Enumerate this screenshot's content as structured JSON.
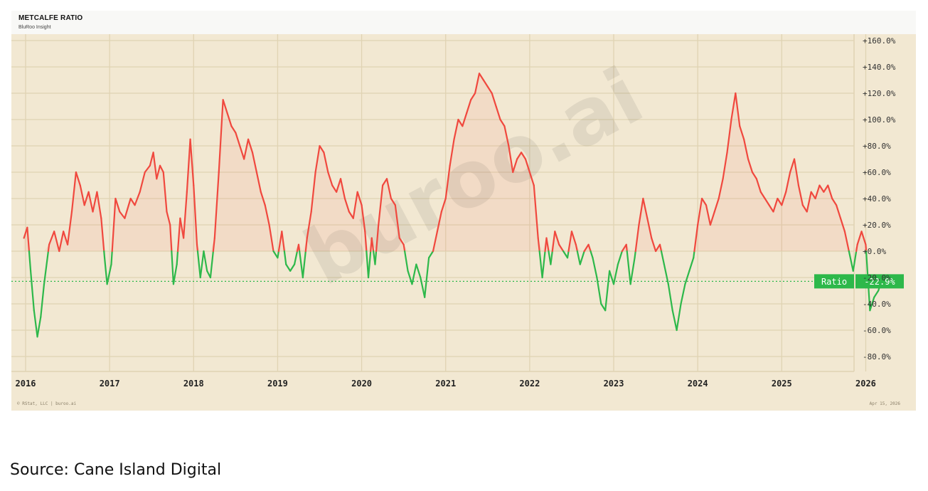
{
  "header": {
    "title": "METCALFE RATIO",
    "subtitle": "BluRoo Insight"
  },
  "watermark": "buroo.ai",
  "footer": {
    "left": "© RStat, LLC  |  buroo.ai",
    "right": "Apr 15, 2026"
  },
  "caption": "Source: Cane Island Digital",
  "badge": {
    "label": "Ratio",
    "value": "-22.9%"
  },
  "colors": {
    "positive": "#f0483e",
    "negative": "#2db84a",
    "background": "#f2e8d2",
    "grid": "#e0d3b3",
    "badge": "#2db84a"
  },
  "chart_data": {
    "type": "line",
    "title": "METCALFE RATIO",
    "subtitle": "BluRoo Insight",
    "xlabel": "",
    "ylabel": "",
    "x_ticks": [
      "2016",
      "2017",
      "2018",
      "2019",
      "2020",
      "2021",
      "2022",
      "2023",
      "2024",
      "2025",
      "2026"
    ],
    "y_ticks": [
      "+160.0%",
      "+140.0%",
      "+120.0%",
      "+100.0%",
      "+80.0%",
      "+60.0%",
      "+40.0%",
      "+20.0%",
      "+0.0%",
      "-20.0%",
      "-40.0%",
      "-60.0%",
      "-80.0%"
    ],
    "y_tick_values": [
      160,
      140,
      120,
      100,
      80,
      60,
      40,
      20,
      0,
      -20,
      -40,
      -60,
      -80
    ],
    "ylim": [
      -90,
      162
    ],
    "xlim": [
      2015.98,
      2027.2
    ],
    "grid": true,
    "last_value": -22.9,
    "series": [
      {
        "name": "Ratio",
        "x": [
          2015.98,
          2016.02,
          2016.06,
          2016.1,
          2016.14,
          2016.18,
          2016.22,
          2016.28,
          2016.34,
          2016.4,
          2016.45,
          2016.5,
          2016.55,
          2016.6,
          2016.65,
          2016.7,
          2016.75,
          2016.8,
          2016.85,
          2016.9,
          2016.94,
          2016.97,
          2017.02,
          2017.07,
          2017.12,
          2017.18,
          2017.25,
          2017.3,
          2017.36,
          2017.42,
          2017.48,
          2017.52,
          2017.56,
          2017.6,
          2017.64,
          2017.68,
          2017.72,
          2017.76,
          2017.8,
          2017.84,
          2017.88,
          2017.92,
          2017.96,
          2018.0,
          2018.04,
          2018.08,
          2018.12,
          2018.16,
          2018.2,
          2018.25,
          2018.3,
          2018.35,
          2018.4,
          2018.45,
          2018.5,
          2018.55,
          2018.6,
          2018.65,
          2018.7,
          2018.75,
          2018.8,
          2018.85,
          2018.9,
          2018.95,
          2019.0,
          2019.05,
          2019.1,
          2019.15,
          2019.2,
          2019.25,
          2019.3,
          2019.35,
          2019.4,
          2019.45,
          2019.5,
          2019.55,
          2019.6,
          2019.65,
          2019.7,
          2019.75,
          2019.8,
          2019.85,
          2019.9,
          2019.95,
          2020.0,
          2020.04,
          2020.08,
          2020.12,
          2020.16,
          2020.2,
          2020.25,
          2020.3,
          2020.35,
          2020.4,
          2020.45,
          2020.5,
          2020.55,
          2020.6,
          2020.65,
          2020.7,
          2020.75,
          2020.8,
          2020.85,
          2020.9,
          2020.95,
          2021.0,
          2021.05,
          2021.1,
          2021.15,
          2021.2,
          2021.25,
          2021.3,
          2021.35,
          2021.4,
          2021.45,
          2021.5,
          2021.55,
          2021.6,
          2021.65,
          2021.7,
          2021.75,
          2021.8,
          2021.85,
          2021.9,
          2021.95,
          2022.0,
          2022.05,
          2022.1,
          2022.15,
          2022.2,
          2022.25,
          2022.3,
          2022.35,
          2022.4,
          2022.45,
          2022.5,
          2022.55,
          2022.6,
          2022.65,
          2022.7,
          2022.75,
          2022.8,
          2022.85,
          2022.9,
          2022.95,
          2023.0,
          2023.05,
          2023.1,
          2023.15,
          2023.2,
          2023.25,
          2023.3,
          2023.35,
          2023.4,
          2023.45,
          2023.5,
          2023.55,
          2023.6,
          2023.65,
          2023.7,
          2023.75,
          2023.8,
          2023.85,
          2023.9,
          2023.95,
          2024.0,
          2024.05,
          2024.1,
          2024.15,
          2024.2,
          2024.25,
          2024.3,
          2024.35,
          2024.4,
          2024.45,
          2024.5,
          2024.55,
          2024.6,
          2024.65,
          2024.7,
          2024.75,
          2024.8,
          2024.85,
          2024.9,
          2024.95,
          2025.0,
          2025.05,
          2025.1,
          2025.15,
          2025.2,
          2025.25,
          2025.3,
          2025.35,
          2025.4,
          2025.45,
          2025.5,
          2025.55,
          2025.6,
          2025.65,
          2025.7,
          2025.75,
          2025.8,
          2025.85,
          2025.9,
          2025.95,
          2026.0,
          2026.05,
          2026.1,
          2026.15,
          2026.2,
          2026.25,
          2026.29
        ],
        "y": [
          10,
          18,
          -15,
          -45,
          -65,
          -50,
          -25,
          5,
          15,
          0,
          15,
          5,
          30,
          60,
          50,
          35,
          45,
          30,
          45,
          25,
          -5,
          -25,
          -10,
          40,
          30,
          25,
          40,
          35,
          45,
          60,
          65,
          75,
          55,
          65,
          60,
          30,
          20,
          -25,
          -10,
          25,
          10,
          45,
          85,
          50,
          5,
          -20,
          0,
          -15,
          -20,
          10,
          60,
          115,
          105,
          95,
          90,
          80,
          70,
          85,
          75,
          60,
          45,
          35,
          20,
          0,
          -5,
          15,
          -10,
          -15,
          -10,
          5,
          -20,
          10,
          30,
          60,
          80,
          75,
          60,
          50,
          45,
          55,
          40,
          30,
          25,
          45,
          35,
          15,
          -20,
          10,
          -10,
          20,
          50,
          55,
          40,
          35,
          10,
          5,
          -15,
          -25,
          -10,
          -20,
          -35,
          -5,
          0,
          15,
          30,
          40,
          65,
          85,
          100,
          95,
          105,
          115,
          120,
          135,
          130,
          125,
          120,
          110,
          100,
          95,
          80,
          60,
          70,
          75,
          70,
          60,
          50,
          10,
          -20,
          10,
          -10,
          15,
          5,
          0,
          -5,
          15,
          5,
          -10,
          0,
          5,
          -5,
          -20,
          -40,
          -45,
          -15,
          -25,
          -10,
          0,
          5,
          -25,
          -5,
          20,
          40,
          25,
          10,
          0,
          5,
          -10,
          -25,
          -45,
          -60,
          -40,
          -25,
          -15,
          -5,
          20,
          40,
          35,
          20,
          30,
          40,
          55,
          75,
          100,
          120,
          95,
          85,
          70,
          60,
          55,
          45,
          40,
          35,
          30,
          40,
          35,
          45,
          60,
          70,
          50,
          35,
          30,
          45,
          40,
          50,
          45,
          50,
          40,
          35,
          25,
          15,
          0,
          -15,
          5,
          15,
          5,
          -45,
          -35,
          -30,
          -20,
          -25,
          -22.9
        ]
      }
    ]
  }
}
